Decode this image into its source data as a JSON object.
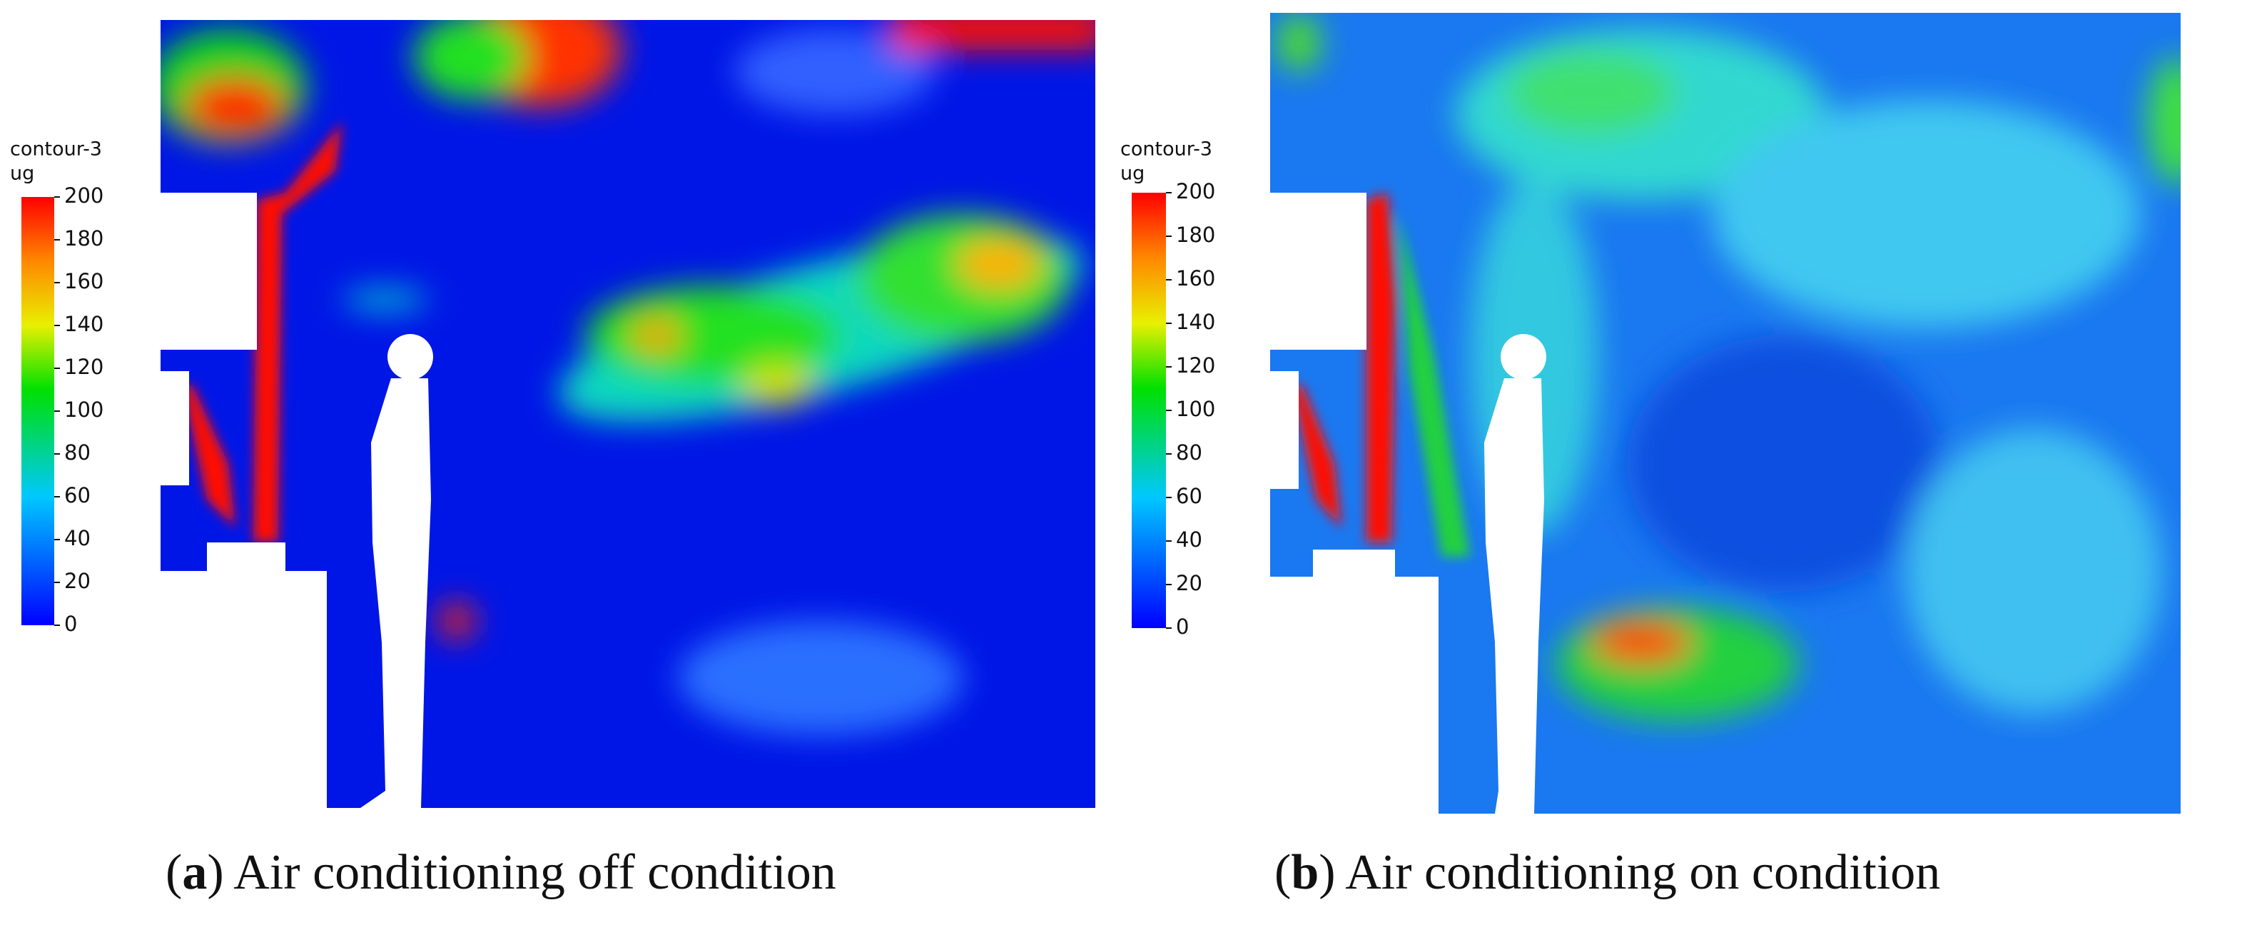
{
  "panels": [
    {
      "legend_title": "contour-3",
      "legend_unit": "ug",
      "colorbar_lim": [
        0,
        200
      ],
      "colorbar_ticks": [
        0,
        20,
        40,
        60,
        80,
        100,
        120,
        140,
        160,
        180,
        200
      ],
      "caption_parts": [
        "(",
        "a",
        ") Air conditioning off condition"
      ]
    },
    {
      "legend_title": "contour-3",
      "legend_unit": "ug",
      "colorbar_lim": [
        0,
        200
      ],
      "colorbar_ticks": [
        0,
        20,
        40,
        60,
        80,
        100,
        120,
        140,
        160,
        180,
        200
      ],
      "caption_parts": [
        "(",
        "b",
        ") Air conditioning on condition"
      ]
    }
  ]
}
